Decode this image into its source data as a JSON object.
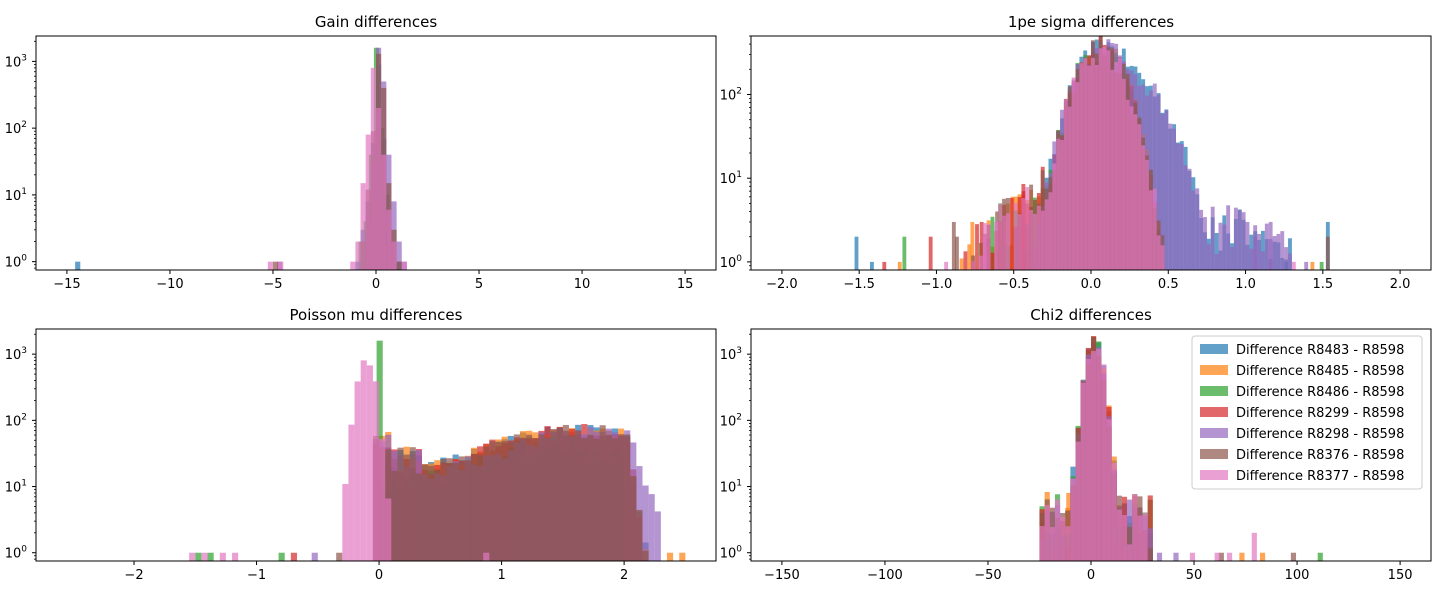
{
  "colors": {
    "R8483": "#1f77b4",
    "R8485": "#ff7f0e",
    "R8486": "#2ca02c",
    "R8299": "#d62728",
    "R8298": "#9467bd",
    "R8376": "#8c564b",
    "R8377": "#e377c2"
  },
  "legend": [
    {
      "key": "R8483",
      "label": "Difference R8483 - R8598"
    },
    {
      "key": "R8485",
      "label": "Difference R8485 - R8598"
    },
    {
      "key": "R8486",
      "label": "Difference R8486 - R8598"
    },
    {
      "key": "R8299",
      "label": "Difference R8299 - R8598"
    },
    {
      "key": "R8298",
      "label": "Difference R8298 - R8598"
    },
    {
      "key": "R8376",
      "label": "Difference R8376 - R8598"
    },
    {
      "key": "R8377",
      "label": "Difference R8377 - R8598"
    }
  ],
  "chart_data": [
    {
      "type": "histogram",
      "title": "Gain differences",
      "xlim": [
        -16.5,
        16.5
      ],
      "ylim": [
        0.75,
        2400
      ],
      "yscale": "log",
      "xticks": [
        -15,
        -10,
        -5,
        0,
        5,
        10,
        15
      ],
      "xtick_labels": [
        "−15",
        "−10",
        "−5",
        "0",
        "5",
        "10",
        "15"
      ],
      "yticks": [
        1,
        10,
        100,
        1000
      ],
      "ytick_labels": [
        "10^0",
        "10^1",
        "10^2",
        "10^3"
      ],
      "bin_width": 0.25,
      "series": [
        {
          "key": "R8483",
          "bins": [
            [
              -14.6,
              1
            ],
            [
              -1.0,
              1
            ],
            [
              -0.75,
              3
            ],
            [
              -0.5,
              8
            ],
            [
              -0.25,
              60
            ],
            [
              0.0,
              900
            ],
            [
              0.25,
              70
            ],
            [
              0.5,
              6
            ],
            [
              0.75,
              2
            ],
            [
              1.0,
              1
            ]
          ]
        },
        {
          "key": "R8486",
          "bins": [
            [
              -0.85,
              2
            ],
            [
              -0.6,
              4
            ],
            [
              -0.35,
              40
            ],
            [
              -0.1,
              1600
            ],
            [
              0.15,
              100
            ],
            [
              0.4,
              10
            ],
            [
              0.65,
              2
            ]
          ]
        },
        {
          "key": "R8298",
          "bins": [
            [
              -4.8,
              1
            ],
            [
              -0.5,
              5
            ],
            [
              -0.25,
              30
            ],
            [
              0.0,
              1600
            ],
            [
              0.25,
              500
            ],
            [
              0.5,
              40
            ],
            [
              0.75,
              8
            ],
            [
              1.0,
              2
            ],
            [
              1.25,
              1
            ]
          ]
        },
        {
          "key": "R8376",
          "bins": [
            [
              -5.0,
              1
            ],
            [
              -0.75,
              2
            ],
            [
              -0.5,
              12
            ],
            [
              -0.25,
              90
            ],
            [
              0.0,
              1300
            ],
            [
              0.25,
              400
            ],
            [
              0.5,
              15
            ],
            [
              0.75,
              3
            ],
            [
              1.0,
              1
            ]
          ]
        },
        {
          "key": "R8377",
          "bins": [
            [
              -5.25,
              1
            ],
            [
              -4.75,
              1
            ],
            [
              -1.25,
              1
            ],
            [
              -1.0,
              2
            ],
            [
              -0.75,
              15
            ],
            [
              -0.5,
              80
            ],
            [
              -0.25,
              800
            ],
            [
              0.0,
              200
            ],
            [
              0.25,
              40
            ],
            [
              0.5,
              6
            ],
            [
              0.75,
              2
            ],
            [
              1.25,
              1
            ]
          ]
        }
      ]
    },
    {
      "type": "histogram",
      "title": "1pe sigma differences",
      "xlim": [
        -2.2,
        2.2
      ],
      "ylim": [
        0.8,
        500
      ],
      "yscale": "log",
      "xticks": [
        -2.0,
        -1.5,
        -1.0,
        -0.5,
        0.0,
        0.5,
        1.0,
        1.5,
        2.0
      ],
      "xtick_labels": [
        "−2.0",
        "−1.5",
        "−1.0",
        "−0.5",
        "0.0",
        "0.5",
        "1.0",
        "1.5",
        "2.0"
      ],
      "yticks": [
        1,
        10,
        100
      ],
      "ytick_labels": [
        "10^0",
        "10^1",
        "10^2"
      ],
      "bin_width": 0.025,
      "series": [
        {
          "key": "R8483",
          "profile": "blue",
          "extra": [
            [
              -1.53,
              2
            ],
            [
              -1.43,
              1
            ],
            [
              1.25,
              1
            ],
            [
              1.52,
              3
            ]
          ]
        },
        {
          "key": "R8485",
          "profile": "core",
          "extra": [
            [
              -1.25,
              1
            ],
            [
              -0.78,
              3
            ],
            [
              -0.52,
              6
            ],
            [
              1.42,
              1
            ]
          ]
        },
        {
          "key": "R8486",
          "profile": "core",
          "extra": [
            [
              -1.22,
              2
            ],
            [
              -0.6,
              5
            ],
            [
              -0.3,
              8
            ],
            [
              1.48,
              1
            ]
          ]
        },
        {
          "key": "R8299",
          "profile": "core",
          "extra": [
            [
              -1.35,
              1
            ],
            [
              -1.05,
              2
            ],
            [
              -0.72,
              3
            ],
            [
              -0.45,
              7
            ]
          ]
        },
        {
          "key": "R8298",
          "profile": "blue",
          "extra": [
            [
              1.05,
              2
            ],
            [
              1.15,
              3
            ],
            [
              1.38,
              1
            ]
          ]
        },
        {
          "key": "R8376",
          "profile": "core",
          "extra": [
            [
              -0.9,
              3
            ],
            [
              -0.88,
              2
            ],
            [
              -0.62,
              4
            ],
            [
              1.52,
              2
            ]
          ]
        },
        {
          "key": "R8377",
          "profile": "core",
          "extra": [
            [
              -0.95,
              1
            ],
            [
              -0.7,
              2
            ],
            [
              1.3,
              1
            ]
          ]
        }
      ]
    },
    {
      "type": "histogram",
      "title": "Poisson mu differences",
      "xlim": [
        -2.8,
        2.75
      ],
      "ylim": [
        0.75,
        2400
      ],
      "yscale": "log",
      "xticks": [
        -2,
        -1,
        0,
        1,
        2
      ],
      "xtick_labels": [
        "−2",
        "−1",
        "0",
        "1",
        "2"
      ],
      "yticks": [
        1,
        10,
        100,
        1000
      ],
      "ytick_labels": [
        "10^0",
        "10^1",
        "10^2",
        "10^3"
      ],
      "bin_width": 0.05,
      "series": [
        {
          "key": "R8483",
          "profile": "broad",
          "extra": []
        },
        {
          "key": "R8485",
          "profile": "broad",
          "extra": [
            [
              2.45,
              1
            ],
            [
              2.35,
              1
            ],
            [
              0.2,
              40
            ]
          ]
        },
        {
          "key": "R8486",
          "profile": "spike",
          "extra": [
            [
              -0.82,
              1
            ],
            [
              -1.5,
              1
            ],
            [
              -1.4,
              1
            ]
          ]
        },
        {
          "key": "R8299",
          "profile": "broad",
          "extra": [
            [
              -0.72,
              1
            ]
          ]
        },
        {
          "key": "R8298",
          "profile": "broad2",
          "extra": [
            [
              -0.55,
              1
            ]
          ]
        },
        {
          "key": "R8376",
          "profile": "broad",
          "extra": [
            [
              -0.35,
              1
            ]
          ]
        },
        {
          "key": "R8377",
          "profile": "pinkneg",
          "extra": [
            [
              -1.55,
              1
            ],
            [
              -1.45,
              1
            ],
            [
              -1.3,
              1
            ],
            [
              -1.2,
              1
            ]
          ]
        }
      ]
    },
    {
      "type": "histogram",
      "title": "Chi2 differences",
      "xlim": [
        -165,
        165
      ],
      "ylim": [
        0.75,
        2400
      ],
      "yscale": "log",
      "xticks": [
        -150,
        -100,
        -50,
        0,
        50,
        100,
        150
      ],
      "xtick_labels": [
        "−150",
        "−100",
        "−50",
        "0",
        "50",
        "100",
        "150"
      ],
      "yticks": [
        1,
        10,
        100,
        1000
      ],
      "ytick_labels": [
        "10^0",
        "10^1",
        "10^2",
        "10^3"
      ],
      "bin_width": 2.5,
      "series": [
        {
          "key": "R8483",
          "profile": "chi",
          "extra": [
            [
              -10,
              20
            ],
            [
              20,
              3
            ]
          ]
        },
        {
          "key": "R8485",
          "profile": "chi",
          "extra": [
            [
              -12,
              8
            ],
            [
              82,
              1
            ],
            [
              72,
              1
            ]
          ]
        },
        {
          "key": "R8486",
          "profile": "chi",
          "extra": [
            [
              -22,
              2
            ],
            [
              110,
              1
            ]
          ]
        },
        {
          "key": "R8299",
          "profile": "chi",
          "extra": [
            [
              -15,
              3
            ]
          ]
        },
        {
          "key": "R8298",
          "profile": "chi",
          "extra": [
            [
              32,
              1
            ],
            [
              40,
              1
            ]
          ]
        },
        {
          "key": "R8376",
          "profile": "chi",
          "extra": [
            [
              97,
              1
            ],
            [
              62,
              1
            ]
          ]
        },
        {
          "key": "R8377",
          "profile": "chi",
          "extra": [
            [
              48,
              1
            ],
            [
              60,
              1
            ],
            [
              66,
              1
            ],
            [
              78,
              2
            ]
          ]
        }
      ]
    }
  ]
}
